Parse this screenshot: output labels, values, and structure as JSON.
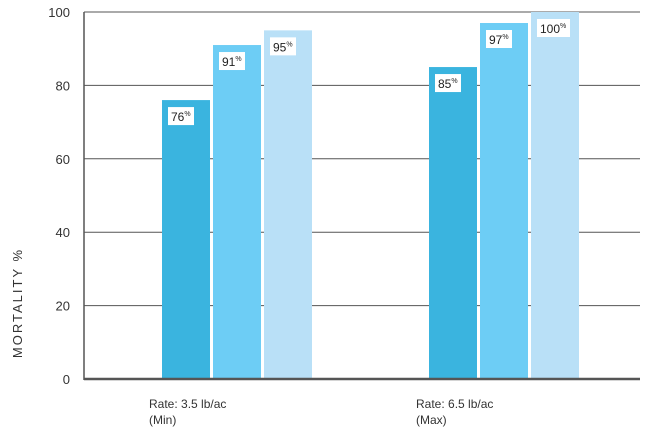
{
  "chart_data": {
    "type": "bar",
    "title": "",
    "xlabel": "",
    "ylabel": "MORTALITY %",
    "ylim": [
      0,
      100
    ],
    "yticks": [
      "0",
      "20",
      "40",
      "60",
      "80",
      "100"
    ],
    "grid": true,
    "legend": "none",
    "categories": [
      [
        "Rate: 3.5 lb/ac",
        "(Min)"
      ],
      [
        "Rate: 6.5 lb/ac",
        "(Max)"
      ]
    ],
    "series": [
      {
        "color": "#3ab4df",
        "values": [
          76,
          85
        ],
        "labels": [
          "76",
          "85"
        ]
      },
      {
        "color": "#6dcdf5",
        "values": [
          91,
          97
        ],
        "labels": [
          "91",
          "97"
        ]
      },
      {
        "color": "#b9e0f7",
        "values": [
          95,
          100
        ],
        "labels": [
          "95",
          "100"
        ]
      }
    ],
    "value_suffix": "%"
  }
}
